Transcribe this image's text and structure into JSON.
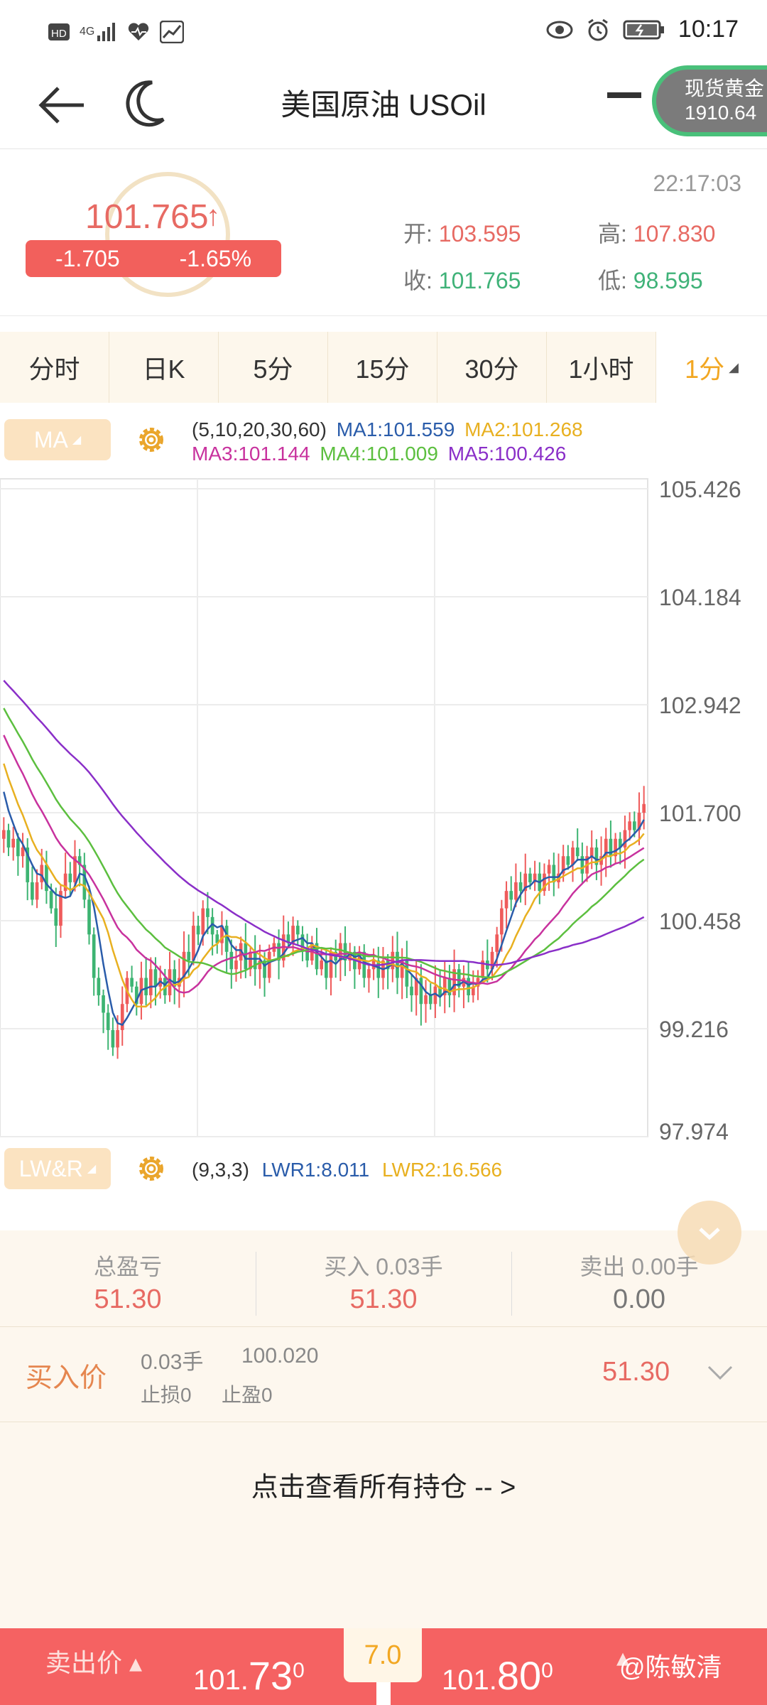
{
  "status": {
    "network": "4G",
    "time": "10:17"
  },
  "header": {
    "title": "美国原油 USOil",
    "gold_name": "现货黄金",
    "gold_price": "1910.64"
  },
  "summary": {
    "price": "101.765",
    "change": "-1.705",
    "change_pct": "-1.65%",
    "timestamp": "22:17:03",
    "open_label": "开:",
    "open": "103.595",
    "high_label": "高:",
    "high": "107.830",
    "close_label": "收:",
    "close": "101.765",
    "low_label": "低:",
    "low": "98.595"
  },
  "tabs": [
    "分时",
    "日K",
    "5分",
    "15分",
    "30分",
    "1小时",
    "1分"
  ],
  "ma": {
    "button": "MA",
    "params": "(5,10,20,30,60)",
    "ma1": "MA1:101.559",
    "ma2": "MA2:101.268",
    "ma3": "MA3:101.144",
    "ma4": "MA4:101.009",
    "ma5": "MA5:100.426",
    "colors": {
      "ma1": "#2a5caa",
      "ma2": "#e8b020",
      "ma3": "#c8329e",
      "ma4": "#5cbf3f",
      "ma5": "#8a2fc8"
    }
  },
  "lwr": {
    "button": "LW&R",
    "params": "(9,3,3)",
    "lwr1": "LWR1:8.011",
    "lwr2": "LWR2:16.566"
  },
  "chart_data": {
    "type": "candlestick",
    "y_ticks": [
      "105.426",
      "104.184",
      "102.942",
      "101.700",
      "100.458",
      "99.216",
      "97.974"
    ],
    "ylim": [
      97.974,
      105.426
    ],
    "grid": true,
    "close": [
      101.5,
      101.3,
      101.4,
      101.2,
      101.3,
      100.9,
      100.7,
      100.9,
      101.1,
      100.8,
      100.6,
      100.4,
      100.8,
      101.0,
      100.9,
      101.2,
      101.1,
      100.7,
      100.3,
      99.8,
      99.6,
      99.4,
      99.2,
      99.0,
      99.2,
      99.5,
      99.8,
      99.7,
      99.5,
      99.8,
      99.6,
      99.9,
      99.7,
      99.8,
      99.6,
      99.9,
      99.7,
      99.8,
      100.1,
      100.0,
      100.4,
      100.3,
      100.6,
      100.5,
      100.3,
      100.2,
      100.4,
      100.1,
      99.9,
      100.0,
      100.2,
      99.9,
      100.1,
      99.9,
      100.0,
      99.8,
      100.1,
      100.2,
      100.0,
      100.3,
      100.2,
      100.4,
      100.3,
      100.1,
      100.0,
      100.2,
      99.9,
      100.0,
      99.8,
      100.1,
      100.0,
      100.2,
      100.0,
      100.1,
      99.9,
      100.1,
      99.8,
      99.9,
      100.0,
      99.8,
      100.0,
      99.9,
      100.1,
      99.8,
      100.0,
      99.7,
      99.6,
      99.8,
      99.5,
      99.6,
      99.5,
      99.7,
      99.6,
      99.8,
      99.6,
      99.9,
      99.7,
      99.8,
      99.6,
      99.7,
      99.8,
      100.0,
      99.9,
      100.1,
      100.3,
      100.6,
      100.8,
      100.7,
      100.9,
      100.8,
      101.0,
      100.9,
      101.0,
      100.8,
      101.0,
      101.1,
      100.9,
      101.0,
      101.2,
      101.1,
      101.3,
      101.2,
      101.0,
      101.2,
      101.3,
      101.1,
      101.2,
      101.4,
      101.2,
      101.4,
      101.3,
      101.5,
      101.6,
      101.5,
      101.7,
      101.8
    ]
  },
  "stats": {
    "total_label": "总盈亏",
    "total": "51.30",
    "buy_label": "买入 0.03手",
    "buy": "51.30",
    "sell_label": "卖出 0.00手",
    "sell": "0.00"
  },
  "position": {
    "label": "买入价",
    "lots": "0.03手",
    "entry": "100.020",
    "sl": "止损0",
    "tp": "止盈0",
    "pl": "51.30"
  },
  "view_all": "点击查看所有持仓 -- >",
  "trade": {
    "sell_label": "卖出价",
    "sell_int": "101.",
    "sell_big": "73",
    "sell_sup": "0",
    "spread": "7.0",
    "buy_int": "101.",
    "buy_big": "80",
    "buy_sup": "0"
  },
  "watermark": "@陈敏清"
}
